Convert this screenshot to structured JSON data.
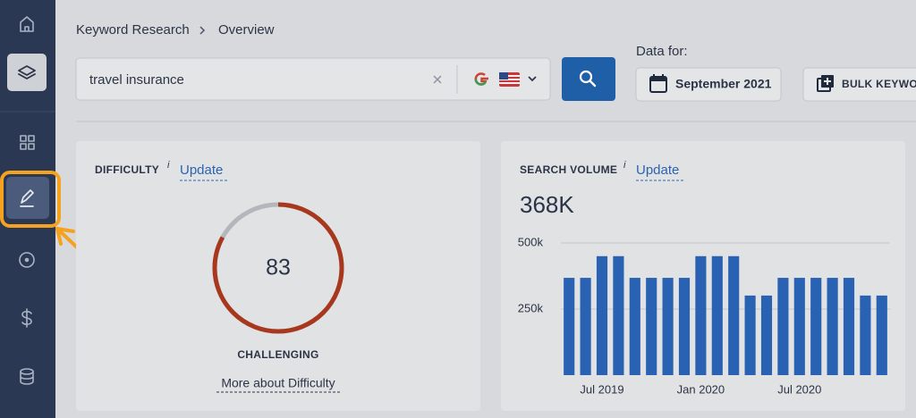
{
  "breadcrumb": {
    "parent": "Keyword Research",
    "current": "Overview"
  },
  "search": {
    "query": "travel insurance"
  },
  "data_for": {
    "label": "Data for:",
    "date": "September 2021"
  },
  "bulk_button": "BULK KEYWOR",
  "difficulty": {
    "title": "DIFFICULTY",
    "info": "i",
    "action": "Update",
    "value": 83,
    "rating": "CHALLENGING",
    "link": "More about Difficulty"
  },
  "chart_data": {
    "type": "bar",
    "title": "SEARCH VOLUME",
    "info": "i",
    "action": "Update",
    "subtitle": "368K",
    "categories": [
      null,
      null,
      "Jul 2019",
      null,
      null,
      null,
      null,
      null,
      "Jan 2020",
      null,
      null,
      null,
      null,
      null,
      "Jul 2020",
      null,
      null,
      null,
      null,
      null
    ],
    "values": [
      368000,
      368000,
      450000,
      450000,
      368000,
      368000,
      368000,
      368000,
      450000,
      450000,
      450000,
      301000,
      301000,
      368000,
      368000,
      368000,
      368000,
      368000,
      301000,
      301000
    ],
    "color": "#2a62b3",
    "ylim": [
      0,
      500000
    ],
    "yticks": [
      {
        "value": 250000,
        "label": "250k"
      },
      {
        "value": 500000,
        "label": "500k"
      }
    ],
    "grid": true
  }
}
